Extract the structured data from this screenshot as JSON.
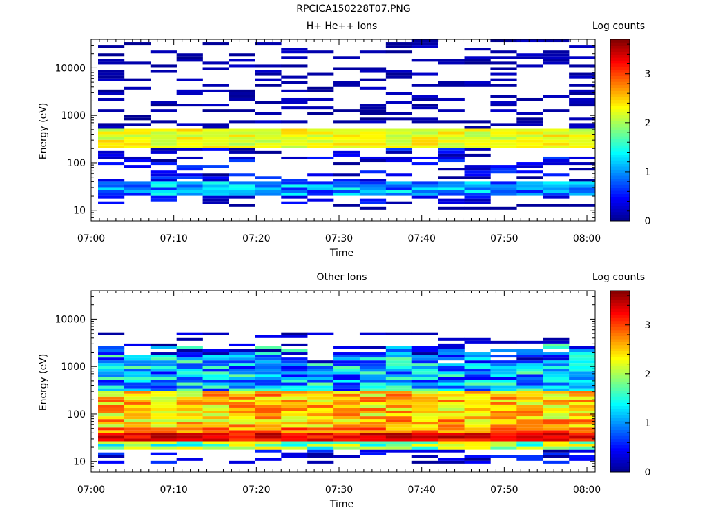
{
  "image_title": "RPCICA150228T07.PNG",
  "colorscale": [
    "#00008f",
    "#0000ff",
    "#0080ff",
    "#00ffff",
    "#80ff80",
    "#ffff00",
    "#ff8000",
    "#ff0000",
    "#800000"
  ],
  "chart_data": [
    {
      "type": "heatmap",
      "title": "H+ He++ Ions",
      "xlabel": "Time",
      "ylabel": "Energy (eV)",
      "colorbar_label": "Log counts",
      "x_ticks": [
        "07:00",
        "07:10",
        "07:20",
        "07:30",
        "07:40",
        "07:50",
        "08:00"
      ],
      "y_ticks": [
        "10",
        "100",
        "1000",
        "10000"
      ],
      "colorbar_ticks": [
        "0",
        "1",
        "2",
        "3"
      ],
      "x_range": [
        "07:00",
        "08:01"
      ],
      "y_scale": "log",
      "y_range": [
        6,
        40000
      ],
      "z_range": [
        0,
        3.7
      ],
      "dominant_band_eV": [
        200,
        500
      ],
      "dominant_band_log_counts": [
        2.0,
        2.5
      ],
      "low_energy_band_eV": [
        20,
        40
      ],
      "low_energy_band_log_counts": [
        0.5,
        1.5
      ],
      "sparse_high_energy_log_counts": 0.0
    },
    {
      "type": "heatmap",
      "title": "Other Ions",
      "xlabel": "Time",
      "ylabel": "Energy (eV)",
      "colorbar_label": "Log counts",
      "x_ticks": [
        "07:00",
        "07:10",
        "07:20",
        "07:30",
        "07:40",
        "07:50",
        "08:00"
      ],
      "y_ticks": [
        "10",
        "100",
        "1000",
        "10000"
      ],
      "colorbar_ticks": [
        "0",
        "1",
        "2",
        "3"
      ],
      "x_range": [
        "07:00",
        "08:01"
      ],
      "y_scale": "log",
      "y_range": [
        6,
        40000
      ],
      "z_range": [
        0,
        3.7
      ],
      "peak_band_eV": [
        25,
        40
      ],
      "peak_band_log_counts": [
        3.0,
        3.6
      ],
      "mid_band_eV": [
        50,
        300
      ],
      "mid_band_log_counts": [
        2.0,
        3.0
      ],
      "upper_cutoff_eV": [
        1000,
        3000
      ]
    }
  ]
}
